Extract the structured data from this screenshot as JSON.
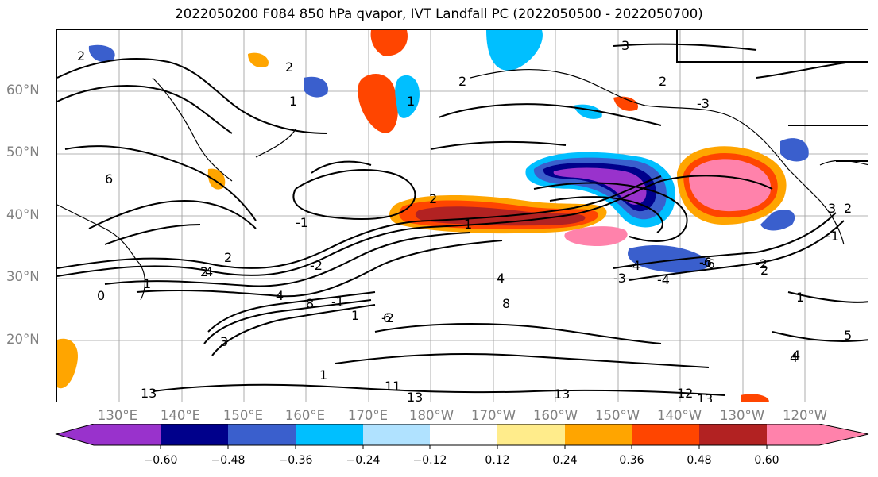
{
  "title": "2022050200 F084 850 hPa qvapor, IVT Landfall PC (2022050500 - 2022050700)",
  "lat_labels": [
    "60°N",
    "50°N",
    "40°N",
    "30°N",
    "20°N"
  ],
  "lon_labels": [
    "130°E",
    "140°E",
    "150°E",
    "160°E",
    "170°E",
    "180°W",
    "170°W",
    "160°W",
    "150°W",
    "140°W",
    "130°W",
    "120°W"
  ],
  "colorbar": {
    "colors": [
      "#9932CC",
      "#00008B",
      "#3A5FCD",
      "#00BFFF",
      "#B0E2FF",
      "#FFFFFF",
      "#FFEC8B",
      "#FFA500",
      "#FF4500",
      "#B22222",
      "#FF82AB"
    ],
    "ticks": [
      "−0.60",
      "−0.48",
      "−0.36",
      "−0.24",
      "−0.12",
      "0.12",
      "0.24",
      "0.36",
      "0.48",
      "0.60"
    ]
  },
  "contour_labels": [
    "2",
    "3",
    "1",
    "2",
    "1",
    "2",
    "2",
    "-3",
    "2",
    "1",
    "6",
    "2",
    "-1",
    "-2",
    "2",
    "-1",
    "2",
    "4",
    "-2",
    "1",
    "0",
    "1",
    "-3",
    "-4",
    "2",
    "4",
    "-6",
    "-4",
    "4",
    "8",
    "8",
    "3",
    "6",
    "1",
    "1",
    "4",
    "5",
    "3",
    "-1",
    "13",
    "11",
    "13",
    "13",
    "12",
    "13",
    "4",
    "-2",
    "-6"
  ]
}
